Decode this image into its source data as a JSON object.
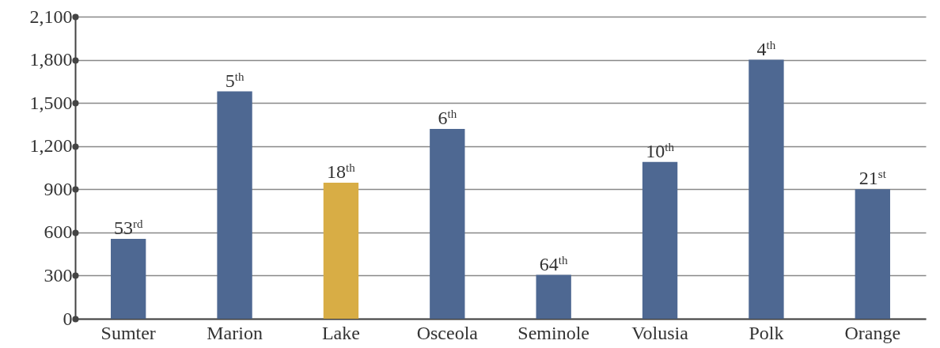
{
  "chart_data": {
    "type": "bar",
    "categories": [
      "Sumter",
      "Marion",
      "Lake",
      "Osceola",
      "Seminole",
      "Volusia",
      "Polk",
      "Orange"
    ],
    "values": [
      555,
      1580,
      945,
      1320,
      305,
      1090,
      1800,
      900
    ],
    "colors": [
      "#4e6892",
      "#4e6892",
      "#d8ad45",
      "#4e6892",
      "#4e6892",
      "#4e6892",
      "#4e6892",
      "#4e6892"
    ],
    "annotations": [
      {
        "text": "53$^{rd}$",
        "x": "Sumter",
        "y": 555
      },
      {
        "text": "5$^{th}$",
        "x": "Marion",
        "y": 1580
      },
      {
        "text": "18$^{th}$",
        "x": "Lake",
        "y": 945
      },
      {
        "text": "6$^{th}$",
        "x": "Osceola",
        "y": 1320
      },
      {
        "text": "64$^{th}$",
        "x": "Seminole",
        "y": 305
      },
      {
        "text": "10$^{th}$",
        "x": "Volusia",
        "y": 1090
      },
      {
        "text": "4$^{th}$",
        "x": "Polk",
        "y": 1800
      },
      {
        "text": "21$^{st}$",
        "x": "Orange",
        "y": 900
      }
    ],
    "ylim": [
      0,
      2100
    ],
    "yticks": [
      0,
      300,
      600,
      900,
      {
        "value": 1200,
        "label": "1,200"
      },
      {
        "value": 1500,
        "label": "1,500"
      },
      {
        "value": 1800,
        "label": "1,800"
      },
      {
        "value": 2100,
        "label": "2,100"
      }
    ],
    "grid": "y"
  }
}
